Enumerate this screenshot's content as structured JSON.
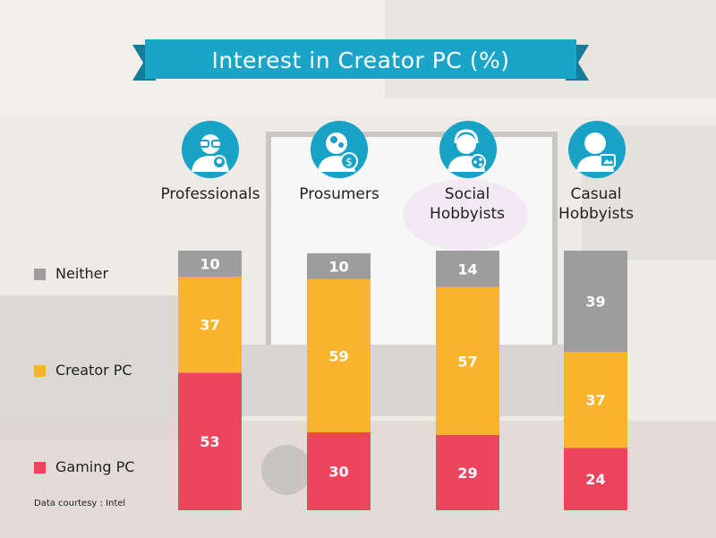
{
  "chart_data": {
    "type": "stacked-bar",
    "title": "Interest in Creator PC (%)",
    "categories": [
      "Professionals",
      "Prosumers",
      "Social Hobbyists",
      "Casual Hobbyists"
    ],
    "category_labels": [
      [
        "Professionals"
      ],
      [
        "Prosumers"
      ],
      [
        "Social",
        "Hobbyists"
      ],
      [
        "Casual",
        "Hobbyists"
      ]
    ],
    "series": [
      {
        "name": "Gaming PC",
        "values": [
          53,
          30,
          29,
          24
        ],
        "color": "#ef445e"
      },
      {
        "name": "Creator PC",
        "values": [
          37,
          59,
          57,
          37
        ],
        "color": "#f8b32f"
      },
      {
        "name": "Neither",
        "values": [
          10,
          10,
          14,
          39
        ],
        "color": "#9d9d9d"
      }
    ],
    "stack_order": "bottom-to-top",
    "legend_placement": "left",
    "ylim": [
      0,
      100
    ],
    "grid": false
  },
  "icons": [
    "professional-avatar-icon",
    "prosumer-avatar-icon",
    "social-hobbyist-avatar-icon",
    "casual-hobbyist-avatar-icon"
  ],
  "source": {
    "label": "Data courtesy",
    "separator": " : ",
    "value": "Intel"
  },
  "colors": {
    "banner": "#1aa5c8",
    "banner_dark": "#127d98",
    "avatar": "#18a2c6",
    "label_text": "#ffffff"
  }
}
